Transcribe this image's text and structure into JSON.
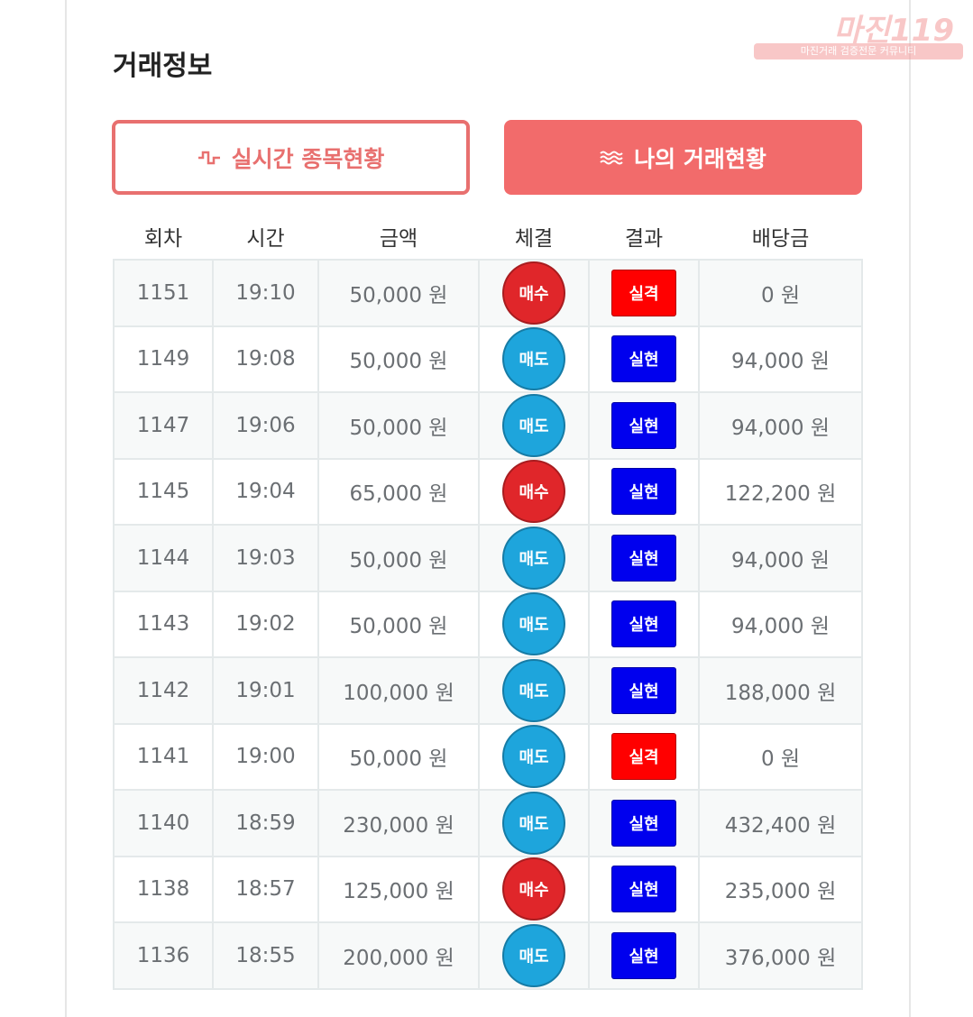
{
  "watermark": {
    "logo": "마진119",
    "tagline": "마진거래 검증전문 커뮤니티"
  },
  "header": {
    "title": "거래정보"
  },
  "tabs": [
    "실시간 종목현황",
    "나의 거래현황"
  ],
  "table": {
    "columns": [
      "회차",
      "시간",
      "금액",
      "체결",
      "결과",
      "배당금"
    ],
    "rows": [
      [
        "1151",
        "19:10",
        "50,000 원",
        {
          "text": "매수",
          "color": "#e0262a"
        },
        {
          "text": "실격",
          "color": "#ff0000"
        },
        "0 원"
      ],
      [
        "1149",
        "19:08",
        "50,000 원",
        {
          "text": "매도",
          "color": "#1ea5dc"
        },
        {
          "text": "실현",
          "color": "#0000ee"
        },
        "94,000 원"
      ],
      [
        "1147",
        "19:06",
        "50,000 원",
        {
          "text": "매도",
          "color": "#1ea5dc"
        },
        {
          "text": "실현",
          "color": "#0000ee"
        },
        "94,000 원"
      ],
      [
        "1145",
        "19:04",
        "65,000 원",
        {
          "text": "매수",
          "color": "#e0262a"
        },
        {
          "text": "실현",
          "color": "#0000ee"
        },
        "122,200 원"
      ],
      [
        "1144",
        "19:03",
        "50,000 원",
        {
          "text": "매도",
          "color": "#1ea5dc"
        },
        {
          "text": "실현",
          "color": "#0000ee"
        },
        "94,000 원"
      ],
      [
        "1143",
        "19:02",
        "50,000 원",
        {
          "text": "매도",
          "color": "#1ea5dc"
        },
        {
          "text": "실현",
          "color": "#0000ee"
        },
        "94,000 원"
      ],
      [
        "1142",
        "19:01",
        "100,000 원",
        {
          "text": "매도",
          "color": "#1ea5dc"
        },
        {
          "text": "실현",
          "color": "#0000ee"
        },
        "188,000 원"
      ],
      [
        "1141",
        "19:00",
        "50,000 원",
        {
          "text": "매도",
          "color": "#1ea5dc"
        },
        {
          "text": "실격",
          "color": "#ff0000"
        },
        "0 원"
      ],
      [
        "1140",
        "18:59",
        "230,000 원",
        {
          "text": "매도",
          "color": "#1ea5dc"
        },
        {
          "text": "실현",
          "color": "#0000ee"
        },
        "432,400 원"
      ],
      [
        "1138",
        "18:57",
        "125,000 원",
        {
          "text": "매수",
          "color": "#e0262a"
        },
        {
          "text": "실현",
          "color": "#0000ee"
        },
        "235,000 원"
      ],
      [
        "1136",
        "18:55",
        "200,000 원",
        {
          "text": "매도",
          "color": "#1ea5dc"
        },
        {
          "text": "실현",
          "color": "#0000ee"
        },
        "376,000 원"
      ]
    ]
  }
}
